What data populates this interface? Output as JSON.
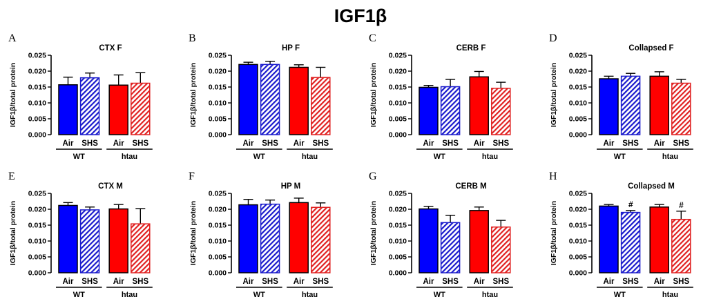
{
  "title": "IGF1β",
  "colors": {
    "wt": "#0000ff",
    "htau": "#ff0000",
    "hatch_wt": "#1a1acc",
    "hatch_htau": "#e02020"
  },
  "chart_data": [
    {
      "type": "bar",
      "letter": "A",
      "title": "CTX F",
      "ylabel": "IGF1β/total protein",
      "ylim": [
        0,
        0.025
      ],
      "yticks": [
        "0.000",
        "0.005",
        "0.010",
        "0.015",
        "0.020",
        "0.025"
      ],
      "categories": [
        "Air",
        "SHS",
        "Air",
        "SHS"
      ],
      "groups": [
        "WT",
        "htau"
      ],
      "values": [
        0.0157,
        0.0179,
        0.0156,
        0.0162
      ],
      "errors": [
        0.0024,
        0.0015,
        0.0032,
        0.0033
      ],
      "annotations": [
        "",
        "",
        "",
        ""
      ]
    },
    {
      "type": "bar",
      "letter": "B",
      "title": "HP F",
      "ylabel": "IGF1β/total protein",
      "ylim": [
        0,
        0.025
      ],
      "yticks": [
        "0.000",
        "0.005",
        "0.010",
        "0.015",
        "0.020",
        "0.025"
      ],
      "categories": [
        "Air",
        "SHS",
        "Air",
        "SHS"
      ],
      "groups": [
        "WT",
        "htau"
      ],
      "values": [
        0.0221,
        0.0221,
        0.0212,
        0.018
      ],
      "errors": [
        0.0007,
        0.001,
        0.0008,
        0.0032
      ],
      "annotations": [
        "",
        "",
        "",
        ""
      ]
    },
    {
      "type": "bar",
      "letter": "C",
      "title": "CERB F",
      "ylabel": "IGF1β/total protein",
      "ylim": [
        0,
        0.025
      ],
      "yticks": [
        "0.000",
        "0.005",
        "0.010",
        "0.015",
        "0.020",
        "0.025"
      ],
      "categories": [
        "Air",
        "SHS",
        "Air",
        "SHS"
      ],
      "groups": [
        "WT",
        "htau"
      ],
      "values": [
        0.0149,
        0.0151,
        0.0182,
        0.0146
      ],
      "errors": [
        0.0006,
        0.0023,
        0.0017,
        0.0019
      ],
      "annotations": [
        "",
        "",
        "",
        ""
      ]
    },
    {
      "type": "bar",
      "letter": "D",
      "title": "Collapsed F",
      "ylabel": "IGF1β/total protein",
      "ylim": [
        0,
        0.025
      ],
      "yticks": [
        "0.000",
        "0.005",
        "0.010",
        "0.015",
        "0.020",
        "0.025"
      ],
      "categories": [
        "Air",
        "SHS",
        "Air",
        "SHS"
      ],
      "groups": [
        "WT",
        "htau"
      ],
      "values": [
        0.0176,
        0.0184,
        0.0184,
        0.0162
      ],
      "errors": [
        0.0008,
        0.0009,
        0.0014,
        0.0012
      ],
      "annotations": [
        "",
        "",
        "",
        ""
      ]
    },
    {
      "type": "bar",
      "letter": "E",
      "title": "CTX M",
      "ylabel": "IGF1β/total protein",
      "ylim": [
        0,
        0.025
      ],
      "yticks": [
        "0.000",
        "0.005",
        "0.010",
        "0.015",
        "0.020",
        "0.025"
      ],
      "categories": [
        "Air",
        "SHS",
        "Air",
        "SHS"
      ],
      "groups": [
        "WT",
        "htau"
      ],
      "values": [
        0.0212,
        0.0198,
        0.0201,
        0.0154
      ],
      "errors": [
        0.0009,
        0.0009,
        0.0014,
        0.0048
      ],
      "annotations": [
        "",
        "",
        "",
        ""
      ]
    },
    {
      "type": "bar",
      "letter": "F",
      "title": "HP M",
      "ylabel": "IGF1β/total protein",
      "ylim": [
        0,
        0.025
      ],
      "yticks": [
        "0.000",
        "0.005",
        "0.010",
        "0.015",
        "0.020",
        "0.025"
      ],
      "categories": [
        "Air",
        "SHS",
        "Air",
        "SHS"
      ],
      "groups": [
        "WT",
        "htau"
      ],
      "values": [
        0.0214,
        0.0216,
        0.0221,
        0.0206
      ],
      "errors": [
        0.0017,
        0.0013,
        0.0014,
        0.0014
      ],
      "annotations": [
        "",
        "",
        "",
        ""
      ]
    },
    {
      "type": "bar",
      "letter": "G",
      "title": "CERB M",
      "ylabel": "IGF1β/total protein",
      "ylim": [
        0,
        0.025
      ],
      "yticks": [
        "0.000",
        "0.005",
        "0.010",
        "0.015",
        "0.020",
        "0.025"
      ],
      "categories": [
        "Air",
        "SHS",
        "Air",
        "SHS"
      ],
      "groups": [
        "WT",
        "htau"
      ],
      "values": [
        0.0201,
        0.0158,
        0.0196,
        0.0144
      ],
      "errors": [
        0.0008,
        0.0023,
        0.0011,
        0.0021
      ],
      "annotations": [
        "",
        "",
        "",
        ""
      ]
    },
    {
      "type": "bar",
      "letter": "H",
      "title": "Collapsed M",
      "ylabel": "IGF1β/total protein",
      "ylim": [
        0,
        0.025
      ],
      "yticks": [
        "0.000",
        "0.005",
        "0.010",
        "0.015",
        "0.020",
        "0.025"
      ],
      "categories": [
        "Air",
        "SHS",
        "Air",
        "SHS"
      ],
      "groups": [
        "WT",
        "htau"
      ],
      "values": [
        0.021,
        0.019,
        0.0207,
        0.0168
      ],
      "errors": [
        0.0005,
        0.0006,
        0.0008,
        0.0026
      ],
      "annotations": [
        "",
        "#",
        "",
        "#"
      ]
    }
  ]
}
